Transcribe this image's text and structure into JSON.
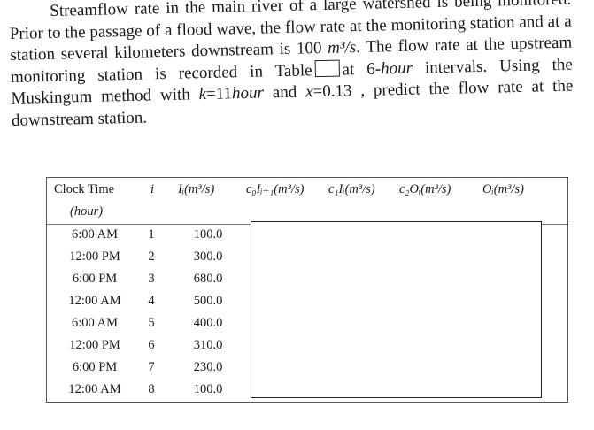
{
  "problem": {
    "part1": "Streamflow rate in the main river of a large watershed is being monitored. Prior to the passage of a flood wave, the flow rate at the monitoring station and at a station several kilometers downstream is 100 ",
    "unit1": "m³/s",
    "part2": ". The flow rate at the upstream monitoring station is recorded in Table",
    "part3": "at 6-",
    "hour_word": "hour",
    "part4": " intervals. Using the Muskingum method with ",
    "k_var": "k",
    "k_value": "=11",
    "k_unit": "hour",
    "part5": " and ",
    "x_var": "x",
    "x_value": "=0.13",
    "part6": " , predict the flow rate at the downstream station."
  },
  "table": {
    "headers": {
      "clock_time": "Clock Time",
      "clock_unit": "(hour)",
      "i": "i",
      "inflow": "Iᵢ(m³/s)",
      "c0": "c₀Iᵢ₊₁(m³/s)",
      "c1": "c₁Iᵢ(m³/s)",
      "c2": "c₂Oᵢ(m³/s)",
      "outflow": "Oᵢ(m³/s)"
    },
    "rows": [
      {
        "time": "6:00 AM",
        "i": "1",
        "inflow": "100.0"
      },
      {
        "time": "12:00 PM",
        "i": "2",
        "inflow": "300.0"
      },
      {
        "time": "6:00 PM",
        "i": "3",
        "inflow": "680.0"
      },
      {
        "time": "12:00 AM",
        "i": "4",
        "inflow": "500.0"
      },
      {
        "time": "6:00 AM",
        "i": "5",
        "inflow": "400.0"
      },
      {
        "time": "12:00 PM",
        "i": "6",
        "inflow": "310.0"
      },
      {
        "time": "6:00 PM",
        "i": "7",
        "inflow": "230.0"
      },
      {
        "time": "12:00 AM",
        "i": "8",
        "inflow": "100.0"
      }
    ]
  }
}
